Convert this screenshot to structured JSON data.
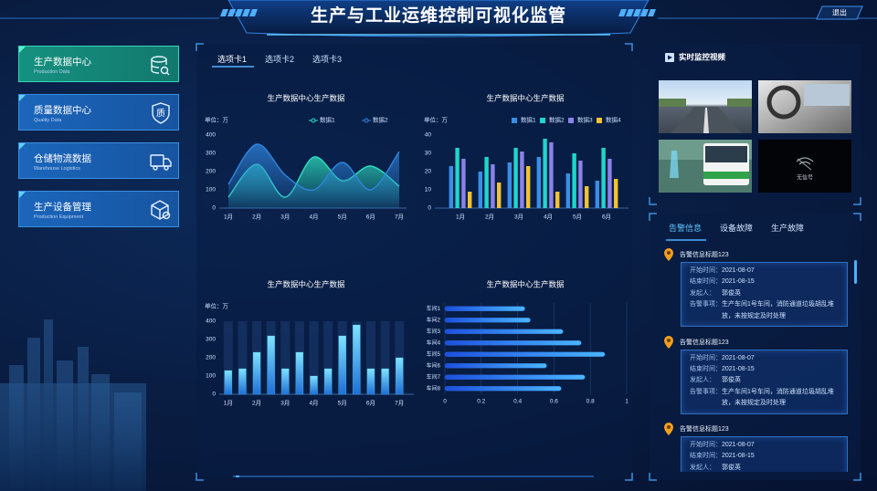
{
  "header": {
    "title": "生产与工业运维控制可视化监管",
    "exit": "退出"
  },
  "nav": {
    "items": [
      {
        "label": "生产数据中心",
        "sub": "Production Data"
      },
      {
        "label": "质量数据中心",
        "sub": "Quality Data",
        "icon": "质"
      },
      {
        "label": "仓储物流数据",
        "sub": "Warehouse Logistics"
      },
      {
        "label": "生产设备管理",
        "sub": "Production Equipment"
      }
    ]
  },
  "tabs": [
    "选项卡1",
    "选项卡2",
    "选项卡3"
  ],
  "video": {
    "title": "实时监控视频",
    "no_signal": "无信号"
  },
  "alerts": {
    "tabs": [
      "告警信息",
      "设备故障",
      "生产故障"
    ],
    "items": [
      {
        "title": "告警信息标题123",
        "fields": [
          [
            "开始时间：",
            "2021-08-07"
          ],
          [
            "结束时间：",
            "2021-08-15"
          ],
          [
            "发起人：",
            "郭俊英"
          ],
          [
            "告警事项：",
            "生产车间1号车间，消防通道垃圾胡乱堆放，未按规定及时处理"
          ]
        ]
      },
      {
        "title": "告警信息标题123",
        "fields": [
          [
            "开始时间：",
            "2021-08-07"
          ],
          [
            "结束时间：",
            "2021-08-15"
          ],
          [
            "发起人：",
            "郭俊英"
          ],
          [
            "告警事项：",
            "生产车间1号车间，消防通道垃圾胡乱堆放，未按规定及时处理"
          ]
        ]
      },
      {
        "title": "告警信息标题123",
        "fields": [
          [
            "开始时间：",
            "2021-08-07"
          ],
          [
            "结束时间：",
            "2021-08-15"
          ],
          [
            "发起人：",
            "郭俊英"
          ]
        ]
      }
    ]
  },
  "chart_data": [
    {
      "type": "area",
      "title": "生产数据中心生产数据",
      "unit": "单位：万",
      "categories": [
        "1月",
        "2月",
        "3月",
        "4月",
        "5月",
        "6月",
        "7月"
      ],
      "series": [
        {
          "name": "数据1",
          "color": "#2ee0c0",
          "values": [
            60,
            240,
            60,
            280,
            150,
            230,
            120
          ]
        },
        {
          "name": "数据2",
          "color": "#2f86e0",
          "values": [
            130,
            350,
            180,
            100,
            250,
            100,
            310
          ]
        }
      ],
      "ylim": [
        0,
        400
      ],
      "yticks": [
        0,
        100,
        200,
        300,
        400
      ]
    },
    {
      "type": "bar",
      "title": "生产数据中心生产数据",
      "unit": "单位：万",
      "categories": [
        "1月",
        "2月",
        "3月",
        "4月",
        "5月",
        "6月"
      ],
      "series": [
        {
          "name": "数据1",
          "color": "#3a8ee6",
          "values": [
            23,
            20,
            25,
            28,
            19,
            15
          ]
        },
        {
          "name": "数据2",
          "color": "#1fd6cc",
          "values": [
            33,
            28,
            33,
            38,
            30,
            33
          ]
        },
        {
          "name": "数据3",
          "color": "#8a82e8",
          "values": [
            27,
            24,
            31,
            36,
            26,
            27
          ]
        },
        {
          "name": "数据4",
          "color": "#f2c232",
          "values": [
            9,
            14,
            23,
            9,
            12,
            16
          ]
        }
      ],
      "ylim": [
        0,
        40
      ],
      "yticks": [
        0,
        10,
        20,
        30,
        40
      ]
    },
    {
      "type": "bar",
      "title": "生产数据中心生产数据",
      "unit": "单位：万",
      "categories": [
        "1月",
        null,
        "2月",
        null,
        "3月",
        null,
        "4月",
        null,
        "5月",
        null,
        "6月",
        null,
        "7月"
      ],
      "values": [
        130,
        140,
        230,
        320,
        140,
        230,
        100,
        140,
        320,
        380,
        140,
        140,
        200
      ],
      "color": "#4fc3f7",
      "ylim": [
        0,
        400
      ],
      "yticks": [
        0,
        100,
        200,
        300,
        400
      ]
    },
    {
      "type": "bar",
      "orientation": "horizontal",
      "title": "生产数据中心生产数据",
      "categories": [
        "车间1",
        "车间2",
        "车间3",
        "车间4",
        "车间5",
        "车间6",
        "车间7",
        "车间8"
      ],
      "values": [
        0.44,
        0.47,
        0.65,
        0.75,
        0.88,
        0.56,
        0.77,
        0.64
      ],
      "color": "#3f8cff",
      "xlim": [
        0,
        1
      ],
      "xticks": [
        0,
        0.2,
        0.4,
        0.6,
        0.8,
        1
      ],
      "grid": true
    }
  ]
}
